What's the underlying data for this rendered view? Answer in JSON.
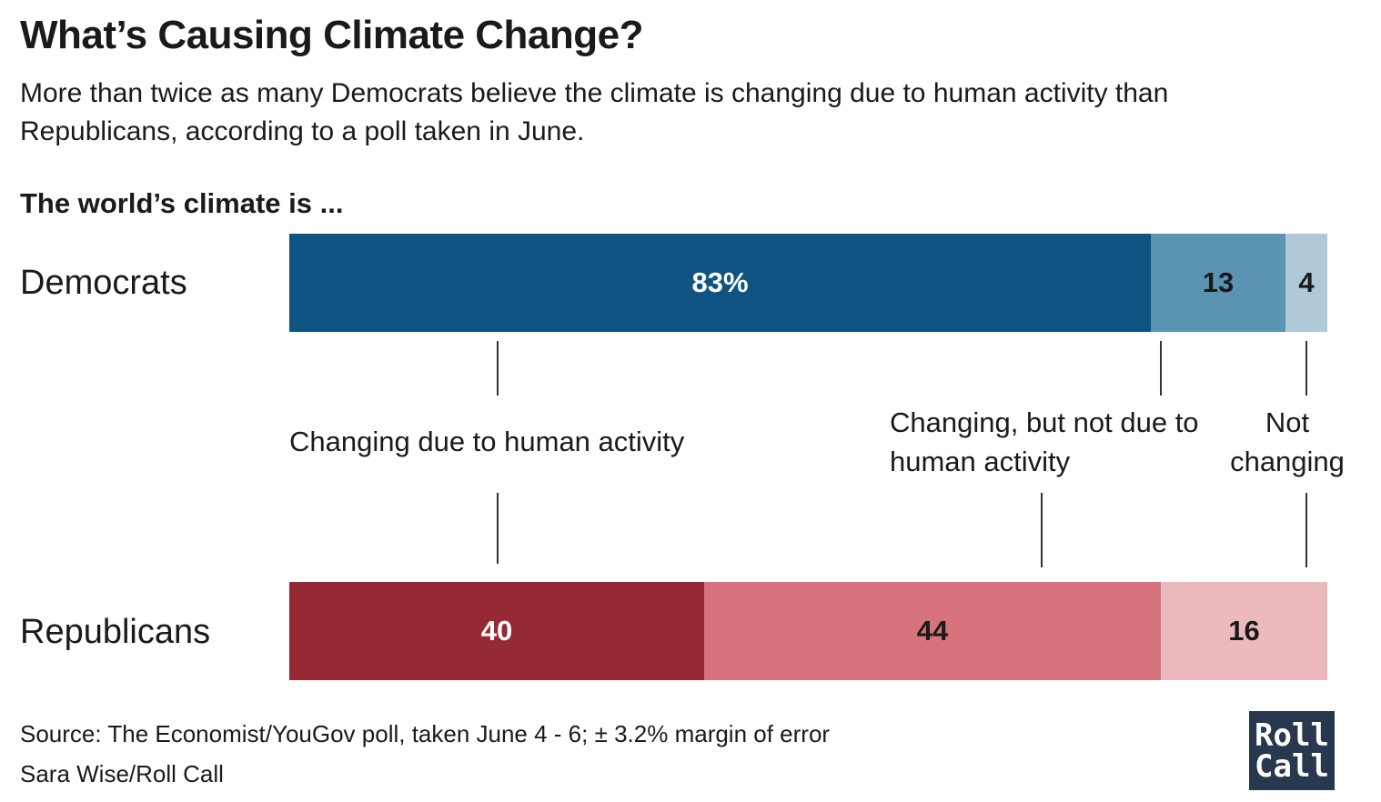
{
  "header": {
    "title": "What’s Causing Climate Change?",
    "subtitle": "More than twice as many Democrats believe the climate is changing due to human activity than Republicans, according to a poll taken in June.",
    "question": "The world’s climate is ..."
  },
  "chart_data": {
    "type": "bar",
    "orientation": "horizontal",
    "stacked": true,
    "title": "What’s Causing Climate Change?",
    "categories": [
      "Democrats",
      "Republicans"
    ],
    "segment_labels": [
      "Changing due to human activity",
      "Changing, but not due to human activity",
      "Not changing"
    ],
    "rows": [
      {
        "name": "Democrats",
        "values": [
          83,
          13,
          4
        ],
        "labels": [
          "83%",
          "13",
          "4"
        ],
        "colors": [
          "#0f5383",
          "#5b93b2",
          "#afc9d8"
        ],
        "text_colors": [
          "#ffffff",
          "#1a1a1a",
          "#1a1a1a"
        ]
      },
      {
        "name": "Republicans",
        "values": [
          40,
          44,
          16
        ],
        "labels": [
          "40",
          "44",
          "16"
        ],
        "colors": [
          "#952a35",
          "#d6737d",
          "#ebb9be"
        ],
        "text_colors": [
          "#ffffff",
          "#1a1a1a",
          "#1a1a1a"
        ]
      }
    ],
    "xlim": [
      0,
      100
    ],
    "grid": false,
    "legend": "inline"
  },
  "footer": {
    "source": "Source: The Economist/YouGov poll, taken June 4 - 6; ± 3.2% margin of error",
    "credit": "Sara Wise/Roll Call",
    "logo_line1": "Roll",
    "logo_line2": "Call"
  }
}
